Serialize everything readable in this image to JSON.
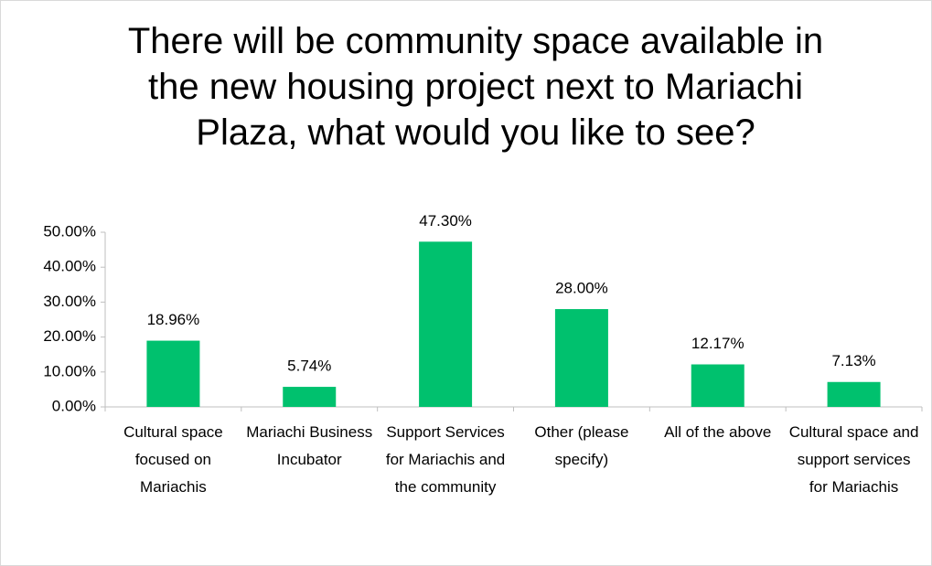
{
  "chart_data": {
    "type": "bar",
    "title": "There will be community space available in the new housing project next to Mariachi Plaza, what would you like to see?",
    "categories": [
      "Cultural space focused on Mariachis",
      "Mariachi Business Incubator",
      "Support Services for Mariachis and the community",
      "Other (please specify)",
      "All of the above",
      "Cultural space and support services for Mariachis"
    ],
    "values": [
      18.96,
      5.74,
      47.3,
      28.0,
      12.17,
      7.13
    ],
    "value_labels": [
      "18.96%",
      "5.74%",
      "47.30%",
      "28.00%",
      "12.17%",
      "7.13%"
    ],
    "color": "#00c16e",
    "ylim": [
      0,
      50
    ],
    "yticks": [
      {
        "value": 0,
        "label": "0.00%"
      },
      {
        "value": 10,
        "label": "10.00%"
      },
      {
        "value": 20,
        "label": "20.00%"
      },
      {
        "value": 30,
        "label": "30.00%"
      },
      {
        "value": 40,
        "label": "40.00%"
      },
      {
        "value": 50,
        "label": "50.00%"
      }
    ],
    "grid": false
  }
}
